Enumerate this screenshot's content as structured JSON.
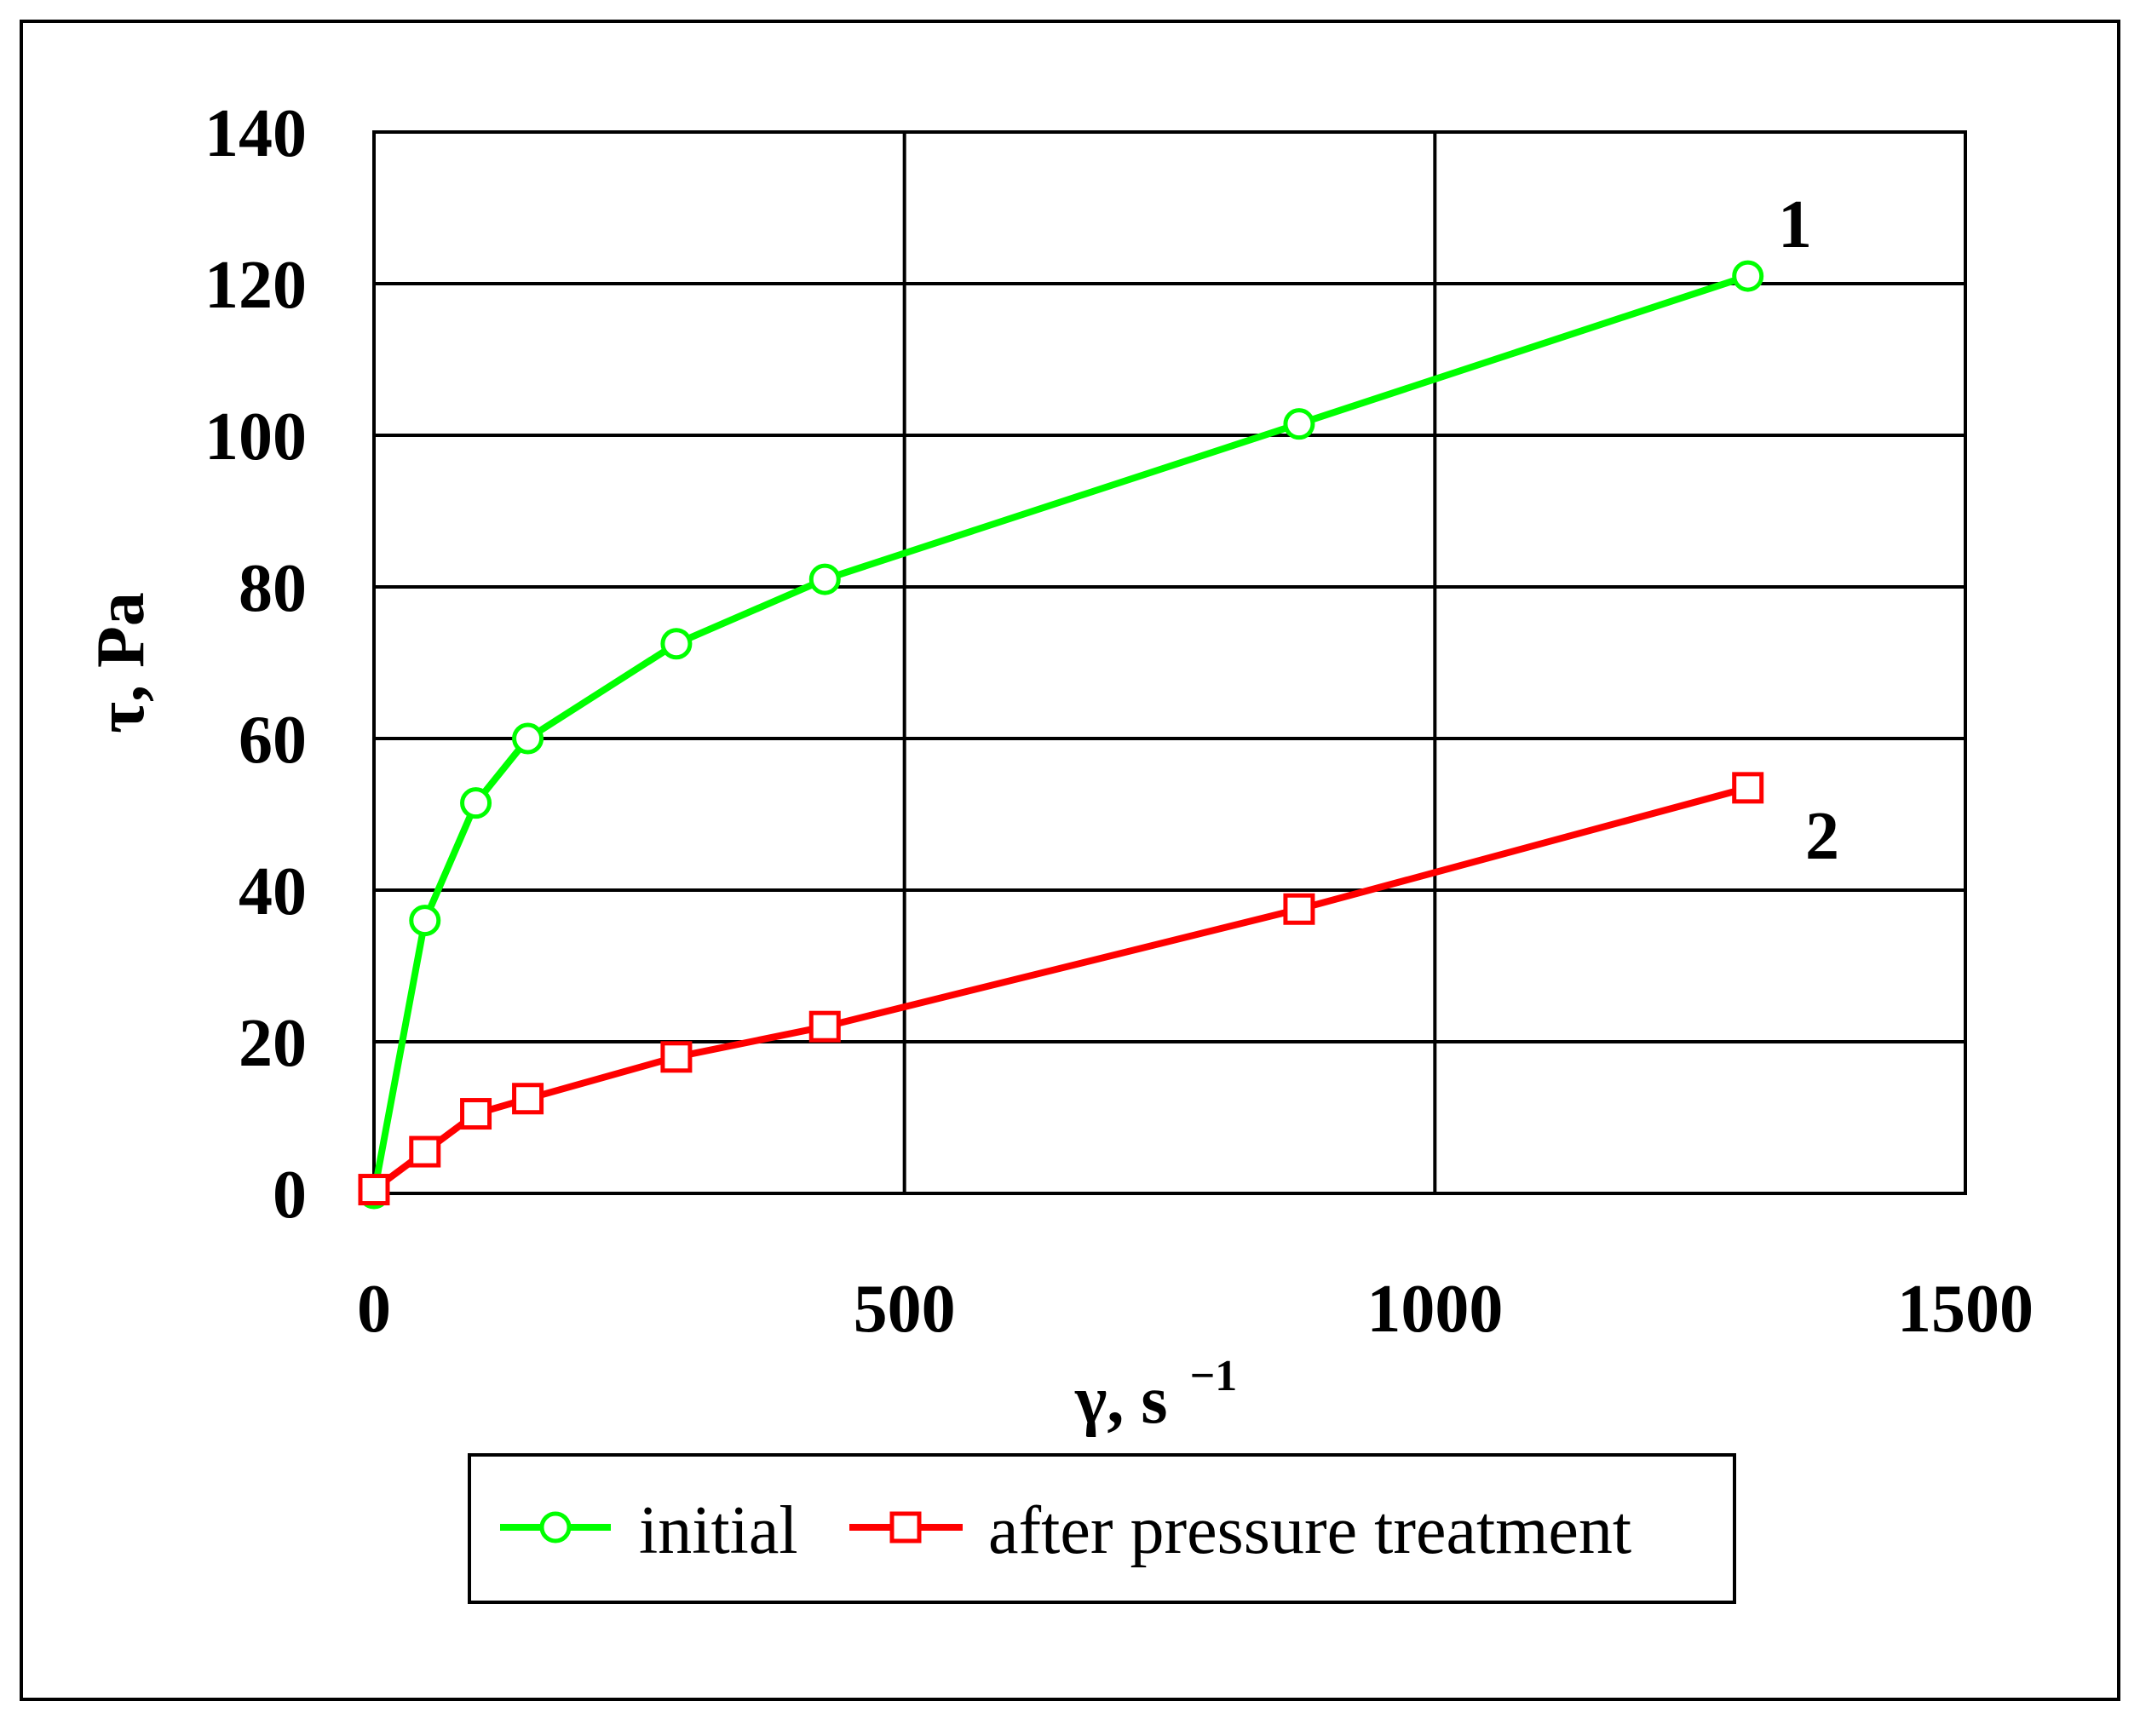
{
  "chart_data": {
    "type": "line",
    "xlabel": "γ, s",
    "xlabel_exponent": "−1",
    "ylabel": "τ, Pa",
    "xlim": [
      0,
      1500
    ],
    "ylim": [
      0,
      140
    ],
    "xticks": [
      0,
      500,
      1000,
      1500
    ],
    "yticks": [
      0,
      20,
      40,
      60,
      80,
      100,
      120,
      140
    ],
    "grid": true,
    "legend_position": "bottom",
    "series": [
      {
        "name": "initial",
        "label": "1",
        "color": "#00ff00",
        "marker": "circle",
        "x": [
          0,
          48,
          96,
          145,
          285,
          425,
          872,
          1295
        ],
        "y": [
          0,
          36,
          51.5,
          60,
          72.5,
          81,
          101.5,
          121
        ]
      },
      {
        "name": "after pressure treatment",
        "label": "2",
        "color": "#ff0000",
        "marker": "square",
        "x": [
          0,
          48,
          96,
          145,
          285,
          425,
          872,
          1295
        ],
        "y": [
          0.5,
          5.5,
          10.5,
          12.5,
          18,
          22,
          37.5,
          53.5
        ]
      }
    ]
  }
}
